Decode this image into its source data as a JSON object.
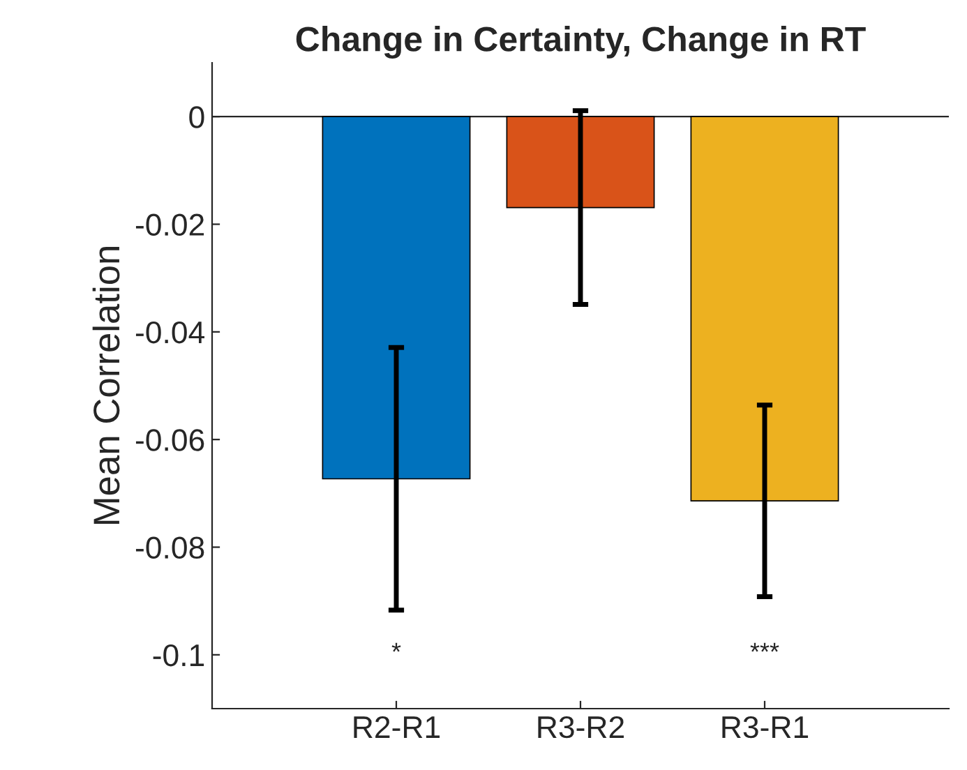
{
  "chart_data": {
    "type": "bar",
    "title": "Change in Certainty, Change in RT",
    "ylabel": "Mean Correlation",
    "categories": [
      "R2-R1",
      "R3-R2",
      "R3-R1"
    ],
    "values": [
      -0.0673,
      -0.0169,
      -0.0714
    ],
    "colors": [
      "#0072bd",
      "#d95319",
      "#edb120"
    ],
    "errors": [
      0.0244,
      0.018,
      0.0178
    ],
    "ylim": [
      -0.11,
      0.01
    ],
    "yticks": [
      -0.1,
      -0.08,
      -0.06,
      -0.04,
      -0.02,
      0
    ],
    "ref_lines": [
      {
        "axis": "y",
        "value": 0,
        "color": "#262626"
      }
    ],
    "annotations": [
      "*",
      "***"
    ],
    "grid": false,
    "legend": false
  }
}
